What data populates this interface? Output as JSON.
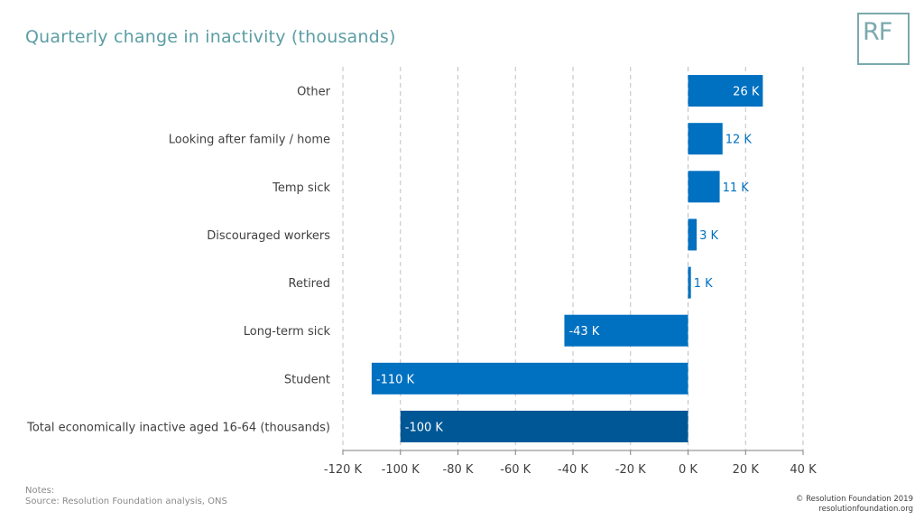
{
  "header": {
    "title": "Quarterly change in inactivity (thousands)",
    "logo_text": "RF"
  },
  "footer": {
    "notes_label": "Notes:",
    "source": "Source: Resolution Foundation analysis, ONS",
    "copyright": "© Resolution Foundation 2019",
    "website": "resolutionfoundation.org"
  },
  "colors": {
    "bar": "#0070c0",
    "total_bar": "#005796",
    "label_inside": "#ffffff",
    "label_outside": "#0070c0",
    "gridline": "#bfbfbf"
  },
  "chart_data": {
    "type": "bar",
    "orientation": "horizontal",
    "title": "Quarterly change in inactivity (thousands)",
    "categories": [
      "Other",
      "Looking after family / home",
      "Temp sick",
      "Discouraged workers",
      "Retired",
      "Long-term sick",
      "Student",
      "Total economically inactive aged 16-64 (thousands)"
    ],
    "values": [
      26,
      12,
      11,
      3,
      1,
      -43,
      -110,
      -100
    ],
    "data_labels": [
      "26 K",
      "12 K",
      "11 K",
      "3 K",
      "1 K",
      "-43 K",
      "-110 K",
      "-100 K"
    ],
    "highlight_index": 7,
    "xlim": [
      -120,
      40
    ],
    "xticks": [
      -120,
      -100,
      -80,
      -60,
      -40,
      -20,
      0,
      20,
      40
    ],
    "xtick_labels": [
      "-120 K",
      "-100 K",
      "-80 K",
      "-60 K",
      "-40 K",
      "-20 K",
      "0 K",
      "20 K",
      "40 K"
    ],
    "grid": "vertical-dashed",
    "legend": "none"
  }
}
